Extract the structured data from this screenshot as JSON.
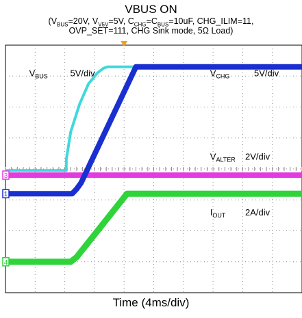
{
  "title": "VBUS ON",
  "conditions_line1": "(VBUS=20V, V5V=5V, CCHG=CBUS=10uF, CHG_ILIM=11,",
  "conditions_line2": "OVP_SET=111, CHG Sink mode, 5Ω Load)",
  "colors": {
    "vbus": "#3fd8dc",
    "vchg": "#1a2fd0",
    "valter": "#e23be0",
    "iout": "#2fd43a",
    "grid": "#8c8c8c",
    "trigger": "#f0a020"
  },
  "chart_data": {
    "type": "line",
    "title": "VBUS ON",
    "xlabel": "Time (4ms/div)",
    "x_unit": "div",
    "xlim": [
      0,
      10
    ],
    "ylim": [
      0,
      8
    ],
    "grid": true,
    "series": [
      {
        "name": "VBUS",
        "scale": "5V/div",
        "channel_marker": "",
        "x": [
          0,
          2.05,
          2.05,
          2.2,
          2.5,
          2.8,
          3.1,
          3.3,
          3.45,
          4.2,
          10
        ],
        "y": [
          3.95,
          3.95,
          4.3,
          5.2,
          6.1,
          6.75,
          7.1,
          7.25,
          7.3,
          7.3,
          7.3
        ]
      },
      {
        "name": "VCHG",
        "scale": "5V/div",
        "channel_marker": "1",
        "x": [
          0,
          2.05,
          2.25,
          2.4,
          2.55,
          4.4,
          4.6,
          10
        ],
        "y": [
          3.2,
          3.2,
          3.2,
          3.35,
          3.55,
          7.3,
          7.3,
          7.3
        ]
      },
      {
        "name": "VALTER",
        "scale": "2V/div",
        "channel_marker": "3",
        "x": [
          0,
          10
        ],
        "y": [
          3.8,
          3.8
        ]
      },
      {
        "name": "IOUT",
        "scale": "2A/div",
        "channel_marker": "4",
        "x": [
          0,
          2.2,
          2.4,
          4.1,
          4.3,
          10
        ],
        "y": [
          1.0,
          1.0,
          1.15,
          3.2,
          3.2,
          3.2
        ]
      }
    ],
    "annotations": [
      {
        "label": "VBUS",
        "scale": "5V/div"
      },
      {
        "label": "VCHG",
        "scale": "5V/div"
      },
      {
        "label": "VALTER",
        "scale": "2V/div"
      },
      {
        "label": "IOUT",
        "scale": "2A/div"
      }
    ]
  }
}
